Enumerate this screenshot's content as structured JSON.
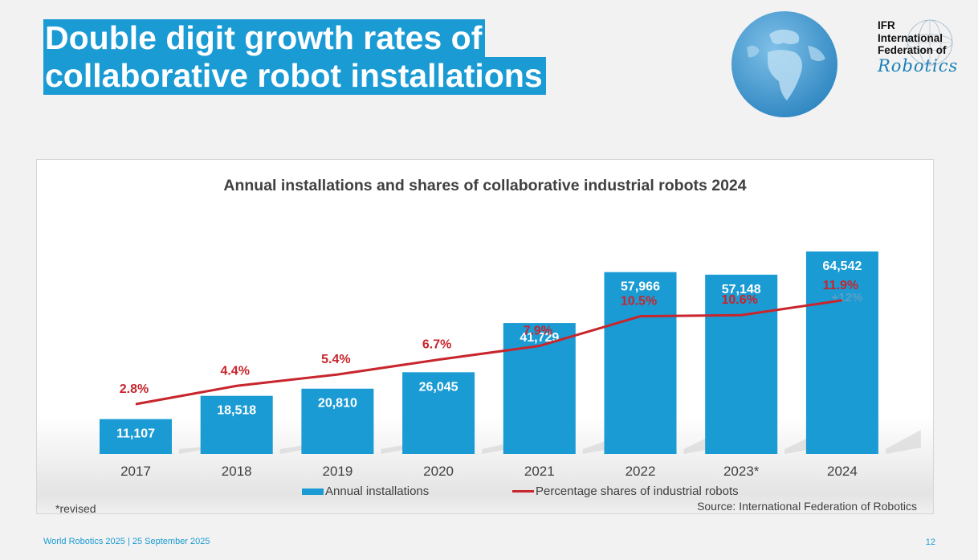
{
  "slide": {
    "title_line1": "Double digit growth rates of",
    "title_line2": "collaborative robot installations",
    "logo": {
      "line1": "IFR",
      "line2": "International",
      "line3": "Federation of",
      "line4": "Robotics"
    },
    "note": "*revised",
    "source": "Source: International Federation of Robotics",
    "footer": "World Robotics 2025  | 25 September 2025",
    "page_number": "12"
  },
  "colors": {
    "accent": "#1a9bd4",
    "bar": "#1a9bd4",
    "line": "#c8252c",
    "text": "#404040"
  },
  "chart_data": {
    "type": "bar",
    "title": "Annual installations and shares of collaborative industrial robots 2024",
    "categories": [
      "2017",
      "2018",
      "2019",
      "2020",
      "2021",
      "2022",
      "2023*",
      "2024"
    ],
    "series": [
      {
        "name": "Annual installations",
        "type": "bar",
        "values": [
          11107,
          18518,
          20810,
          26045,
          41729,
          57966,
          57148,
          64542
        ],
        "labels": [
          "11,107",
          "18,518",
          "20,810",
          "26,045",
          "41,729",
          "57,966",
          "57,148",
          "64,542"
        ]
      },
      {
        "name": "Percentage shares of industrial robots",
        "type": "line",
        "values": [
          2.8,
          4.4,
          5.4,
          6.7,
          7.9,
          10.5,
          10.6,
          11.9
        ],
        "labels": [
          "2.8%",
          "4.4%",
          "5.4%",
          "6.7%",
          "7.9%",
          "10.5%",
          "10.6%",
          "11.9%"
        ]
      }
    ],
    "annotations": [
      {
        "category": "2024",
        "text": "+12%"
      }
    ],
    "legend_position": "bottom",
    "grid": false
  }
}
